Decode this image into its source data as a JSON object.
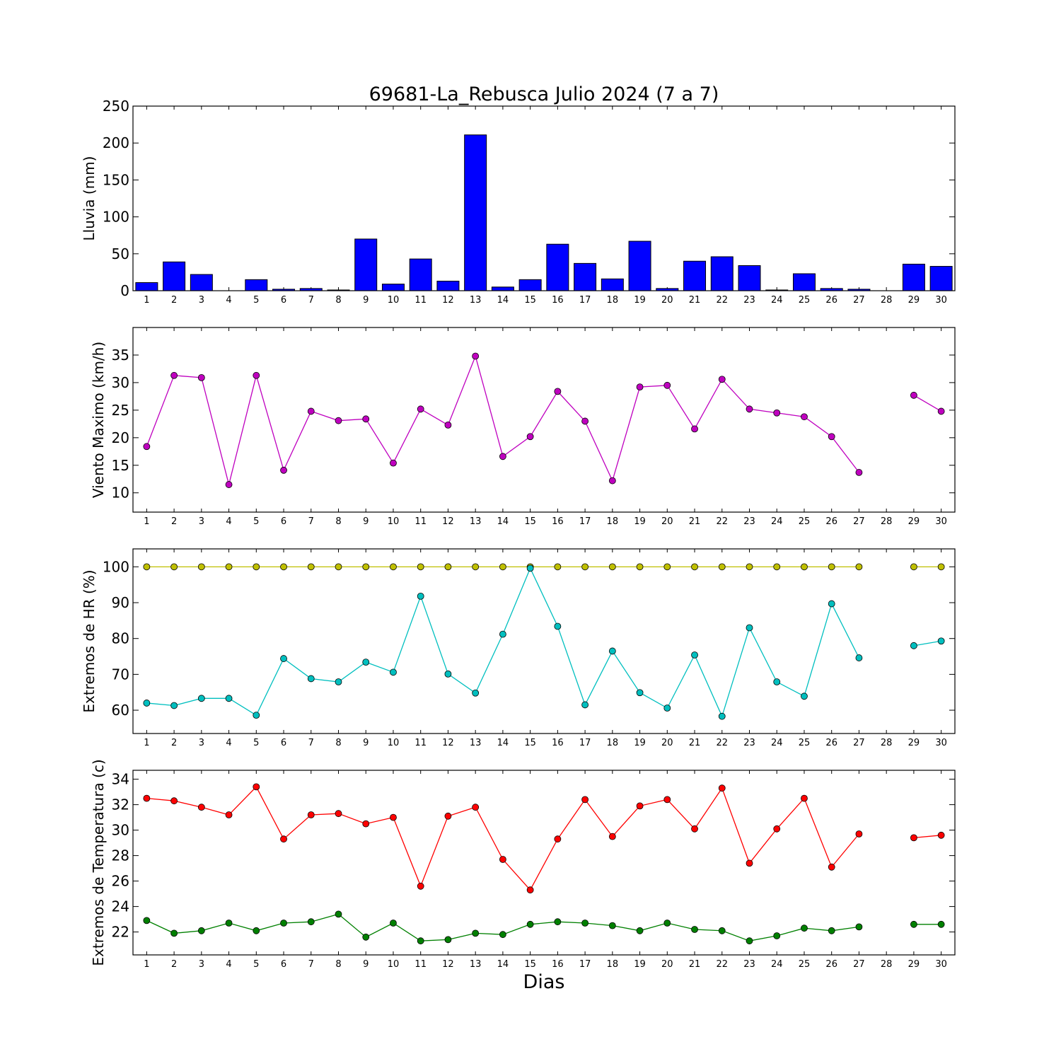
{
  "title": "69681-La_Rebusca Julio 2024  (7 a 7)",
  "xlabel": "Dias",
  "chart_data": [
    {
      "type": "bar",
      "ylabel": "Lluvia (mm)",
      "ylim": [
        0,
        250
      ],
      "yticks": [
        0,
        50,
        100,
        150,
        200,
        250
      ],
      "categories": [
        "1",
        "2",
        "3",
        "4",
        "5",
        "6",
        "7",
        "8",
        "9",
        "10",
        "11",
        "12",
        "13",
        "14",
        "15",
        "16",
        "17",
        "18",
        "19",
        "20",
        "21",
        "22",
        "23",
        "24",
        "25",
        "26",
        "27",
        "28",
        "29",
        "30"
      ],
      "series": [
        {
          "color": "#0000ff",
          "values": [
            11,
            39,
            22,
            0,
            15,
            2,
            3,
            1,
            70,
            9,
            43,
            13,
            211,
            5,
            15,
            63,
            37,
            16,
            67,
            3,
            40,
            46,
            34,
            1,
            23,
            3,
            2,
            0,
            36,
            33
          ]
        }
      ]
    },
    {
      "type": "line",
      "ylabel": "Viento Maximo (km/h)",
      "ylim": [
        6.5,
        40
      ],
      "yticks": [
        10,
        15,
        20,
        25,
        30,
        35
      ],
      "categories": [
        "1",
        "2",
        "3",
        "4",
        "5",
        "6",
        "7",
        "8",
        "9",
        "10",
        "11",
        "12",
        "13",
        "14",
        "15",
        "16",
        "17",
        "18",
        "19",
        "20",
        "21",
        "22",
        "23",
        "24",
        "25",
        "26",
        "27",
        "28",
        "29",
        "30"
      ],
      "series": [
        {
          "color": "#bf00bf",
          "values": [
            18.4,
            31.3,
            30.9,
            11.5,
            31.3,
            14.1,
            24.8,
            23.1,
            23.4,
            15.4,
            25.2,
            22.3,
            34.8,
            16.6,
            20.2,
            28.4,
            23.0,
            12.2,
            29.2,
            29.5,
            21.6,
            30.6,
            25.2,
            24.5,
            23.8,
            20.2,
            13.7,
            null,
            27.7,
            24.8
          ]
        }
      ]
    },
    {
      "type": "line",
      "ylabel": "Extremos de HR (%)",
      "ylim": [
        53.5,
        105
      ],
      "yticks": [
        60,
        70,
        80,
        90,
        100
      ],
      "categories": [
        "1",
        "2",
        "3",
        "4",
        "5",
        "6",
        "7",
        "8",
        "9",
        "10",
        "11",
        "12",
        "13",
        "14",
        "15",
        "16",
        "17",
        "18",
        "19",
        "20",
        "21",
        "22",
        "23",
        "24",
        "25",
        "26",
        "27",
        "28",
        "29",
        "30"
      ],
      "series": [
        {
          "color": "#bfbf00",
          "values": [
            100,
            100,
            100,
            100,
            100,
            100,
            100,
            100,
            100,
            100,
            100,
            100,
            100,
            100,
            100,
            100,
            100,
            100,
            100,
            100,
            100,
            100,
            100,
            100,
            100,
            100,
            100,
            null,
            100,
            100
          ]
        },
        {
          "color": "#00bfbf",
          "values": [
            62,
            61.3,
            63.3,
            63.3,
            58.6,
            74.4,
            68.8,
            67.9,
            73.4,
            70.6,
            91.8,
            70.1,
            64.8,
            81.2,
            99.6,
            83.4,
            61.5,
            76.5,
            64.9,
            60.6,
            75.4,
            58.3,
            83,
            67.9,
            63.9,
            89.7,
            74.6,
            null,
            78,
            79.3
          ]
        }
      ]
    },
    {
      "type": "line",
      "ylabel": "Extremos de Temperatura (c)",
      "ylim": [
        20.2,
        34.7
      ],
      "yticks": [
        22,
        24,
        26,
        28,
        30,
        32,
        34
      ],
      "categories": [
        "1",
        "2",
        "3",
        "4",
        "5",
        "6",
        "7",
        "8",
        "9",
        "10",
        "11",
        "12",
        "13",
        "14",
        "15",
        "16",
        "17",
        "18",
        "19",
        "20",
        "21",
        "22",
        "23",
        "24",
        "25",
        "26",
        "27",
        "28",
        "29",
        "30"
      ],
      "series": [
        {
          "color": "#ff0000",
          "values": [
            32.5,
            32.3,
            31.8,
            31.2,
            33.4,
            29.3,
            31.2,
            31.3,
            30.5,
            31.0,
            25.6,
            31.1,
            31.8,
            27.7,
            25.3,
            29.3,
            32.4,
            29.5,
            31.9,
            32.4,
            30.1,
            33.3,
            27.4,
            30.1,
            32.5,
            27.1,
            29.7,
            null,
            29.4,
            29.6
          ]
        },
        {
          "color": "#008000",
          "values": [
            22.9,
            21.9,
            22.1,
            22.7,
            22.1,
            22.7,
            22.8,
            23.4,
            21.6,
            22.7,
            21.3,
            21.4,
            21.9,
            21.8,
            22.6,
            22.8,
            22.7,
            22.5,
            22.1,
            22.7,
            22.2,
            22.1,
            21.3,
            21.7,
            22.3,
            22.1,
            22.4,
            null,
            22.6,
            22.6
          ]
        }
      ]
    }
  ]
}
